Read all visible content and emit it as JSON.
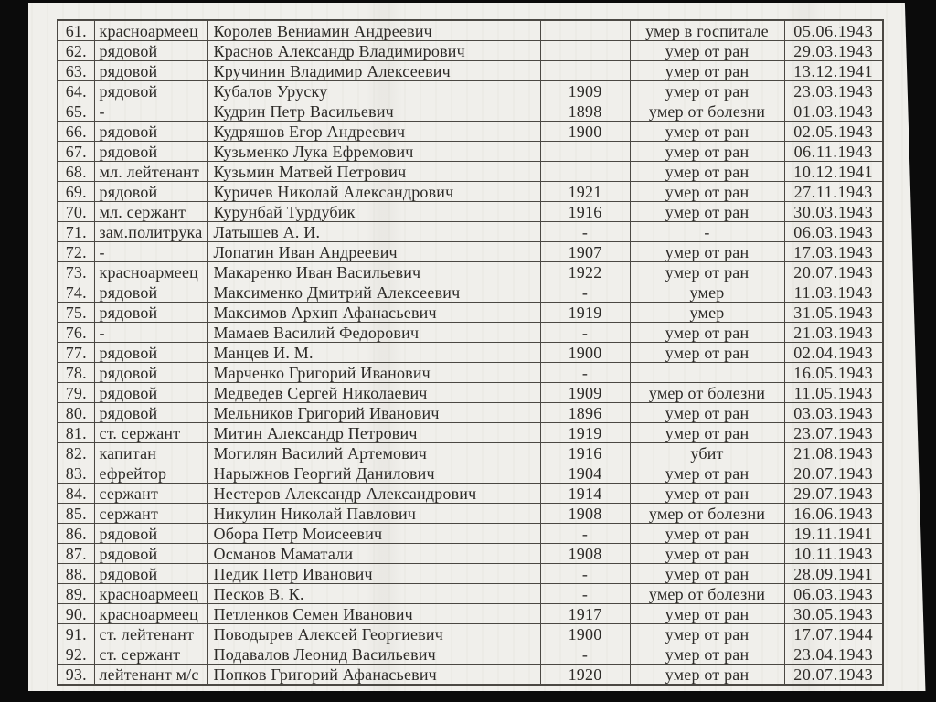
{
  "theme": {
    "paper_color": "#f0efeb",
    "frame_color": "#0b0b0b",
    "line_color": "#4b4843",
    "ink_color": "#2c2a27"
  },
  "document": {
    "kind": "scanned-casualty-list-table",
    "language": "ru",
    "rows": [
      {
        "n": "61.",
        "rank": "красноармеец",
        "name": "Королев Вениамин Андреевич",
        "year": "",
        "cause": "умер в госпитале",
        "date": "05.06.1943"
      },
      {
        "n": "62.",
        "rank": "рядовой",
        "name": "Краснов Александр Владимирович",
        "year": "",
        "cause": "умер от ран",
        "date": "29.03.1943"
      },
      {
        "n": "63.",
        "rank": "рядовой",
        "name": "Кручинин Владимир Алексеевич",
        "year": "",
        "cause": "умер от ран",
        "date": "13.12.1941"
      },
      {
        "n": "64.",
        "rank": "рядовой",
        "name": "Кубалов Уруску",
        "year": "1909",
        "cause": "умер от ран",
        "date": "23.03.1943"
      },
      {
        "n": "65.",
        "rank": "-",
        "name": "Кудрин Петр Васильевич",
        "year": "1898",
        "cause": "умер от болезни",
        "date": "01.03.1943"
      },
      {
        "n": "66.",
        "rank": "рядовой",
        "name": "Кудряшов Егор Андреевич",
        "year": "1900",
        "cause": "умер от ран",
        "date": "02.05.1943"
      },
      {
        "n": "67.",
        "rank": "рядовой",
        "name": "Кузьменко Лука Ефремович",
        "year": "",
        "cause": "умер от ран",
        "date": "06.11.1943"
      },
      {
        "n": "68.",
        "rank": "мл. лейтенант",
        "name": "Кузьмин Матвей Петрович",
        "year": "",
        "cause": "умер от ран",
        "date": "10.12.1941"
      },
      {
        "n": "69.",
        "rank": "рядовой",
        "name": "Куричев Николай Александрович",
        "year": "1921",
        "cause": "умер от ран",
        "date": "27.11.1943"
      },
      {
        "n": "70.",
        "rank": "мл. сержант",
        "name": "Курунбай Турдубик",
        "year": "1916",
        "cause": "умер от ран",
        "date": "30.03.1943"
      },
      {
        "n": "71.",
        "rank": "зам.политрука",
        "name": "Латышев А. И.",
        "year": "-",
        "cause": "-",
        "date": "06.03.1943"
      },
      {
        "n": "72.",
        "rank": "-",
        "name": "Лопатин Иван Андреевич",
        "year": "1907",
        "cause": "умер от ран",
        "date": "17.03.1943"
      },
      {
        "n": "73.",
        "rank": "красноармеец",
        "name": "Макаренко Иван Васильевич",
        "year": "1922",
        "cause": "умер от ран",
        "date": "20.07.1943"
      },
      {
        "n": "74.",
        "rank": "рядовой",
        "name": "Максименко Дмитрий Алексеевич",
        "year": "-",
        "cause": "умер",
        "date": "11.03.1943"
      },
      {
        "n": "75.",
        "rank": "рядовой",
        "name": "Максимов Архип Афанасьевич",
        "year": "1919",
        "cause": "умер",
        "date": "31.05.1943"
      },
      {
        "n": "76.",
        "rank": "-",
        "name": "Мамаев Василий Федорович",
        "year": "-",
        "cause": "умер от ран",
        "date": "21.03.1943"
      },
      {
        "n": "77.",
        "rank": "рядовой",
        "name": "Манцев И. М.",
        "year": "1900",
        "cause": "умер от ран",
        "date": "02.04.1943"
      },
      {
        "n": "78.",
        "rank": "рядовой",
        "name": "Марченко Григорий Иванович",
        "year": "-",
        "cause": "",
        "date": "16.05.1943"
      },
      {
        "n": "79.",
        "rank": "рядовой",
        "name": "Медведев Сергей Николаевич",
        "year": "1909",
        "cause": "умер от болезни",
        "date": "11.05.1943"
      },
      {
        "n": "80.",
        "rank": "рядовой",
        "name": "Мельников Григорий Иванович",
        "year": "1896",
        "cause": "умер от ран",
        "date": "03.03.1943"
      },
      {
        "n": "81.",
        "rank": "ст. сержант",
        "name": "Митин Александр Петрович",
        "year": "1919",
        "cause": "умер от ран",
        "date": "23.07.1943"
      },
      {
        "n": "82.",
        "rank": "капитан",
        "name": "Могилян Василий Артемович",
        "year": "1916",
        "cause": "убит",
        "date": "21.08.1943"
      },
      {
        "n": "83.",
        "rank": "ефрейтор",
        "name": "Нарыжнов Георгий Данилович",
        "year": "1904",
        "cause": "умер от ран",
        "date": "20.07.1943"
      },
      {
        "n": "84.",
        "rank": "сержант",
        "name": "Нестеров Александр Александрович",
        "year": "1914",
        "cause": "умер от ран",
        "date": "29.07.1943"
      },
      {
        "n": "85.",
        "rank": "сержант",
        "name": "Никулин Николай Павлович",
        "year": "1908",
        "cause": "умер от болезни",
        "date": "16.06.1943"
      },
      {
        "n": "86.",
        "rank": "рядовой",
        "name": "Обора Петр Моисеевич",
        "year": "-",
        "cause": "умер от ран",
        "date": "19.11.1941"
      },
      {
        "n": "87.",
        "rank": "рядовой",
        "name": "Османов Маматали",
        "year": "1908",
        "cause": "умер от ран",
        "date": "10.11.1943"
      },
      {
        "n": "88.",
        "rank": "рядовой",
        "name": "Педик Петр Иванович",
        "year": "-",
        "cause": "умер от ран",
        "date": "28.09.1941"
      },
      {
        "n": "89.",
        "rank": "красноармеец",
        "name": "Песков В. К.",
        "year": "-",
        "cause": "умер от болезни",
        "date": "06.03.1943"
      },
      {
        "n": "90.",
        "rank": "красноармеец",
        "name": "Петленков Семен Иванович",
        "year": "1917",
        "cause": "умер от ран",
        "date": "30.05.1943"
      },
      {
        "n": "91.",
        "rank": "ст. лейтенант",
        "name": "Поводырев Алексей Георгиевич",
        "year": "1900",
        "cause": "умер от ран",
        "date": "17.07.1944"
      },
      {
        "n": "92.",
        "rank": "ст. сержант",
        "name": "Подавалов Леонид Васильевич",
        "year": "-",
        "cause": "умер от ран",
        "date": "23.04.1943"
      },
      {
        "n": "93.",
        "rank": "лейтенант м/с",
        "name": "Попков Григорий Афанасьевич",
        "year": "1920",
        "cause": "умер от ран",
        "date": "20.07.1943"
      }
    ]
  }
}
